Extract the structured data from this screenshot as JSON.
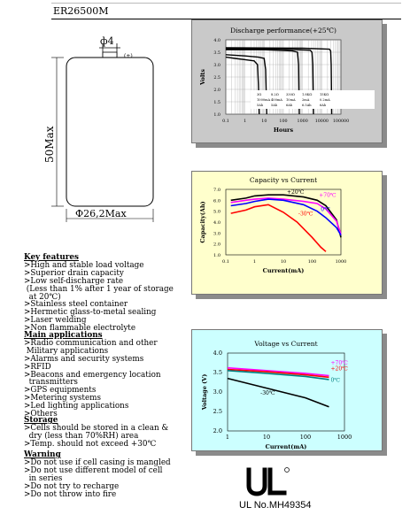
{
  "model": "ER26500M",
  "drawing": {
    "pin_dim": "ф4",
    "plus_mark": "(+)",
    "height_dim": "50Max",
    "diameter_dim": "Ф26,2Max"
  },
  "sections": {
    "key_features": {
      "title": "Key features",
      "items": [
        ">High and stable load voltage",
        ">Superior drain capacity",
        ">Low self-discharge rate",
        " (Less than 1% after 1 year of storage",
        "  at 20℃)",
        ">Stainless steel container",
        ">Hermetic glass-to-metal sealing",
        ">Laser welding",
        ">Non flammable electrolyte"
      ]
    },
    "main_applications": {
      "title": "Main applications",
      "items": [
        ">Radio communication and other",
        " Military applications",
        ">Alarms and security systems",
        ">RFID",
        ">Beacons and emergency location",
        "  transmitters",
        ">GPS equipments",
        ">Metering systems",
        ">Led lighting applications",
        ">Others"
      ]
    },
    "storage": {
      "title": "Storage",
      "items": [
        ">Cells should be stored in a clean &",
        "  dry (less than 70%RH) area",
        ">Temp. should not exceed +30℃"
      ]
    },
    "warning": {
      "title": "Warning",
      "items": [
        ">Do not use if cell casing is mangled",
        ">Do not use different model of cell",
        "  in series",
        ">Do not try to recharge",
        ">Do not throw into fire"
      ]
    }
  },
  "certification": {
    "ul_number": "UL No.MH49354"
  },
  "chart_data": [
    {
      "type": "line",
      "title": "Discharge performance(+25℃)",
      "xlabel": "Hours",
      "ylabel": "Volts",
      "x_scale": "log",
      "xlim": [
        0.1,
        100000
      ],
      "ylim": [
        1.0,
        4.0
      ],
      "x_ticks": [
        "0.1",
        "1",
        "10",
        "100",
        "1000",
        "10000",
        "100000"
      ],
      "y_ticks": [
        "1.0",
        "1.5",
        "2.0",
        "2.5",
        "3.0",
        "3.5",
        "4.0"
      ],
      "grid": true,
      "legend_table": [
        [
          "3Ω",
          "8.2Ω",
          "330Ω",
          "1.8KΩ",
          "15KΩ"
        ],
        [
          "1000mA",
          "400mA",
          "10mA",
          "2mA",
          "0.2mA"
        ],
        [
          "5Ah",
          "5Ah",
          "6Ah",
          "6.5Ah",
          "6Ah"
        ]
      ],
      "series": [
        {
          "label": "3Ω",
          "x": [
            0.1,
            0.3,
            1,
            3,
            4.5,
            5,
            5.5
          ],
          "y": [
            3.3,
            3.25,
            3.2,
            3.15,
            3.0,
            2.2,
            1.0
          ]
        },
        {
          "label": "8.2Ω",
          "x": [
            0.1,
            1,
            5,
            10,
            12,
            13.5
          ],
          "y": [
            3.4,
            3.35,
            3.3,
            3.25,
            2.8,
            1.0
          ]
        },
        {
          "label": "330Ω",
          "x": [
            0.1,
            10,
            300,
            550,
            620,
            680
          ],
          "y": [
            3.6,
            3.6,
            3.55,
            3.5,
            3.0,
            1.0
          ]
        },
        {
          "label": "1.8KΩ",
          "x": [
            0.1,
            100,
            2500,
            3100,
            3400,
            3700
          ],
          "y": [
            3.65,
            3.62,
            3.58,
            3.5,
            3.0,
            1.0
          ]
        },
        {
          "label": "15KΩ",
          "x": [
            0.1,
            1000,
            25000,
            29000,
            31000,
            33000
          ],
          "y": [
            3.68,
            3.66,
            3.62,
            3.55,
            3.0,
            1.0
          ]
        }
      ]
    },
    {
      "type": "line",
      "title": "Capacity vs Current",
      "xlabel": "Current(mA)",
      "ylabel": "Capacity(Ah)",
      "x_scale": "log",
      "xlim": [
        0.1,
        1000
      ],
      "ylim": [
        1.0,
        7.0
      ],
      "x_ticks": [
        "0.1",
        "1",
        "10",
        "100",
        "1000"
      ],
      "y_ticks": [
        "1.0",
        "2.0",
        "3.0",
        "4.0",
        "5.0",
        "6.0",
        "7.0"
      ],
      "series": [
        {
          "name": "+20℃",
          "color": "#000000",
          "x": [
            0.15,
            0.5,
            1,
            3,
            10,
            50,
            150,
            300,
            700,
            1000
          ],
          "y": [
            6.0,
            6.2,
            6.4,
            6.5,
            6.5,
            6.3,
            6.0,
            5.5,
            4.2,
            2.6
          ]
        },
        {
          "name": "+70℃",
          "color": "#ff00ff",
          "x": [
            0.15,
            0.5,
            1,
            3,
            10,
            50,
            150,
            300,
            700,
            1000
          ],
          "y": [
            5.8,
            6.0,
            6.1,
            6.2,
            6.1,
            5.9,
            5.7,
            5.2,
            4.1,
            2.9
          ]
        },
        {
          "name": "0℃",
          "color": "#0000ff",
          "x": [
            0.15,
            0.5,
            1,
            3,
            10,
            50,
            150,
            300,
            700,
            1000
          ],
          "y": [
            5.5,
            5.7,
            5.9,
            6.1,
            6.0,
            5.6,
            5.0,
            4.4,
            3.5,
            2.8
          ]
        },
        {
          "name": "-30℃",
          "color": "#ff0000",
          "x": [
            0.15,
            0.5,
            1,
            3,
            10,
            30,
            100,
            200,
            300
          ],
          "y": [
            4.8,
            5.1,
            5.4,
            5.6,
            4.9,
            4.0,
            2.6,
            1.7,
            1.3
          ]
        }
      ]
    },
    {
      "type": "line",
      "title": "Voltage vs Current",
      "xlabel": "Current(mA)",
      "ylabel": "Voltage (V)",
      "x_scale": "log",
      "xlim": [
        1,
        1000
      ],
      "ylim": [
        2.0,
        4.0
      ],
      "x_ticks": [
        "1",
        "10",
        "100",
        "1000"
      ],
      "y_ticks": [
        "2.0",
        "2.5",
        "3.0",
        "3.5",
        "4.0"
      ],
      "series": [
        {
          "name": "+70℃",
          "color": "#ff00ff",
          "x": [
            1,
            10,
            100,
            400
          ],
          "y": [
            3.62,
            3.55,
            3.48,
            3.42
          ]
        },
        {
          "name": "+20℃",
          "color": "#ff0000",
          "x": [
            1,
            10,
            100,
            400
          ],
          "y": [
            3.58,
            3.52,
            3.44,
            3.38
          ]
        },
        {
          "name": "0℃",
          "color": "#008080",
          "x": [
            1,
            10,
            100,
            400
          ],
          "y": [
            3.55,
            3.48,
            3.4,
            3.32
          ]
        },
        {
          "name": "-30℃",
          "color": "#000000",
          "x": [
            1,
            10,
            100,
            400
          ],
          "y": [
            3.35,
            3.1,
            2.85,
            2.62
          ]
        }
      ]
    }
  ]
}
